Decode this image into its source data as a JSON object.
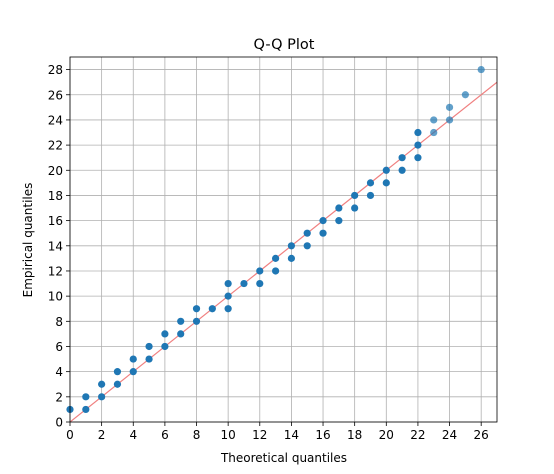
{
  "chart_data": {
    "type": "scatter",
    "title": "Q-Q Plot",
    "xlabel": "Theoretical quantiles",
    "ylabel": "Empirical quantiles",
    "xlim": [
      0,
      27
    ],
    "ylim": [
      0,
      29
    ],
    "xticks": [
      0,
      2,
      4,
      6,
      8,
      10,
      12,
      14,
      16,
      18,
      20,
      22,
      24,
      26
    ],
    "yticks": [
      0,
      2,
      4,
      6,
      8,
      10,
      12,
      14,
      16,
      18,
      20,
      22,
      24,
      26,
      28
    ],
    "grid": true,
    "colors": {
      "points": "#1f77b4",
      "reference_line": "#f08080"
    },
    "reference_line": {
      "x": [
        0,
        27
      ],
      "y": [
        0,
        27
      ]
    },
    "points": [
      [
        0,
        1
      ],
      [
        1,
        1
      ],
      [
        1,
        2
      ],
      [
        2,
        2
      ],
      [
        2,
        3
      ],
      [
        3,
        3
      ],
      [
        3,
        4
      ],
      [
        4,
        4
      ],
      [
        4,
        5
      ],
      [
        5,
        5
      ],
      [
        5,
        6
      ],
      [
        6,
        6
      ],
      [
        6,
        7
      ],
      [
        7,
        7
      ],
      [
        7,
        8
      ],
      [
        8,
        8
      ],
      [
        8,
        9
      ],
      [
        9,
        9
      ],
      [
        10,
        9
      ],
      [
        10,
        10
      ],
      [
        10,
        11
      ],
      [
        11,
        11
      ],
      [
        12,
        11
      ],
      [
        12,
        12
      ],
      [
        13,
        12
      ],
      [
        13,
        13
      ],
      [
        14,
        13
      ],
      [
        14,
        14
      ],
      [
        15,
        14
      ],
      [
        15,
        15
      ],
      [
        16,
        15
      ],
      [
        16,
        16
      ],
      [
        17,
        16
      ],
      [
        17,
        17
      ],
      [
        18,
        17
      ],
      [
        18,
        18
      ],
      [
        19,
        18
      ],
      [
        19,
        19
      ],
      [
        20,
        19
      ],
      [
        20,
        20
      ],
      [
        21,
        20
      ],
      [
        21,
        21
      ],
      [
        22,
        21
      ],
      [
        22,
        22
      ],
      [
        22,
        23
      ],
      [
        23,
        23
      ],
      [
        23,
        24
      ],
      [
        24,
        24
      ],
      [
        24,
        25
      ],
      [
        25,
        26
      ],
      [
        26,
        28
      ]
    ]
  }
}
